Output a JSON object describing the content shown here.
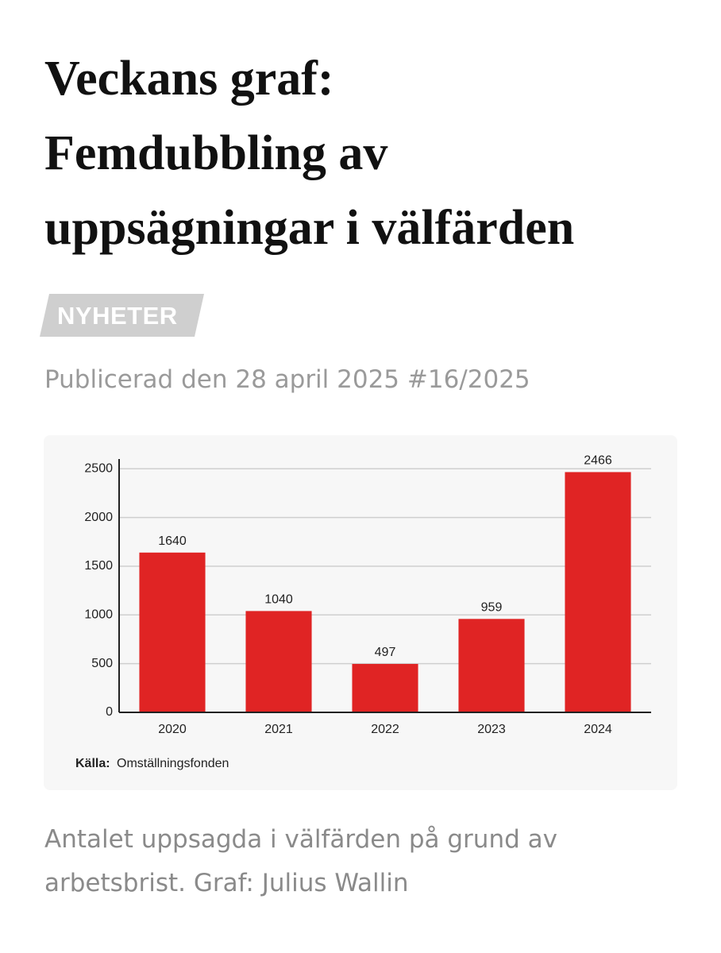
{
  "title_lines": [
    "Veckans graf:",
    "Femdubbling av",
    "uppsägningar i välfärden"
  ],
  "tag": "NYHETER",
  "published": "Publicerad den 28 april 2025 #16/2025",
  "chart_data": {
    "type": "bar",
    "categories": [
      "2020",
      "2021",
      "2022",
      "2023",
      "2024"
    ],
    "values": [
      1640,
      1040,
      497,
      959,
      2466
    ],
    "color": "#e02424",
    "ylim": [
      0,
      2600
    ],
    "yticks": [
      0,
      500,
      1000,
      1500,
      2000,
      2500
    ],
    "grid": true,
    "source_label": "Källa:",
    "source": "Omställningsfonden"
  },
  "caption": "Antalet uppsagda i välfärden på grund av arbetsbrist. Graf: Julius Wallin"
}
